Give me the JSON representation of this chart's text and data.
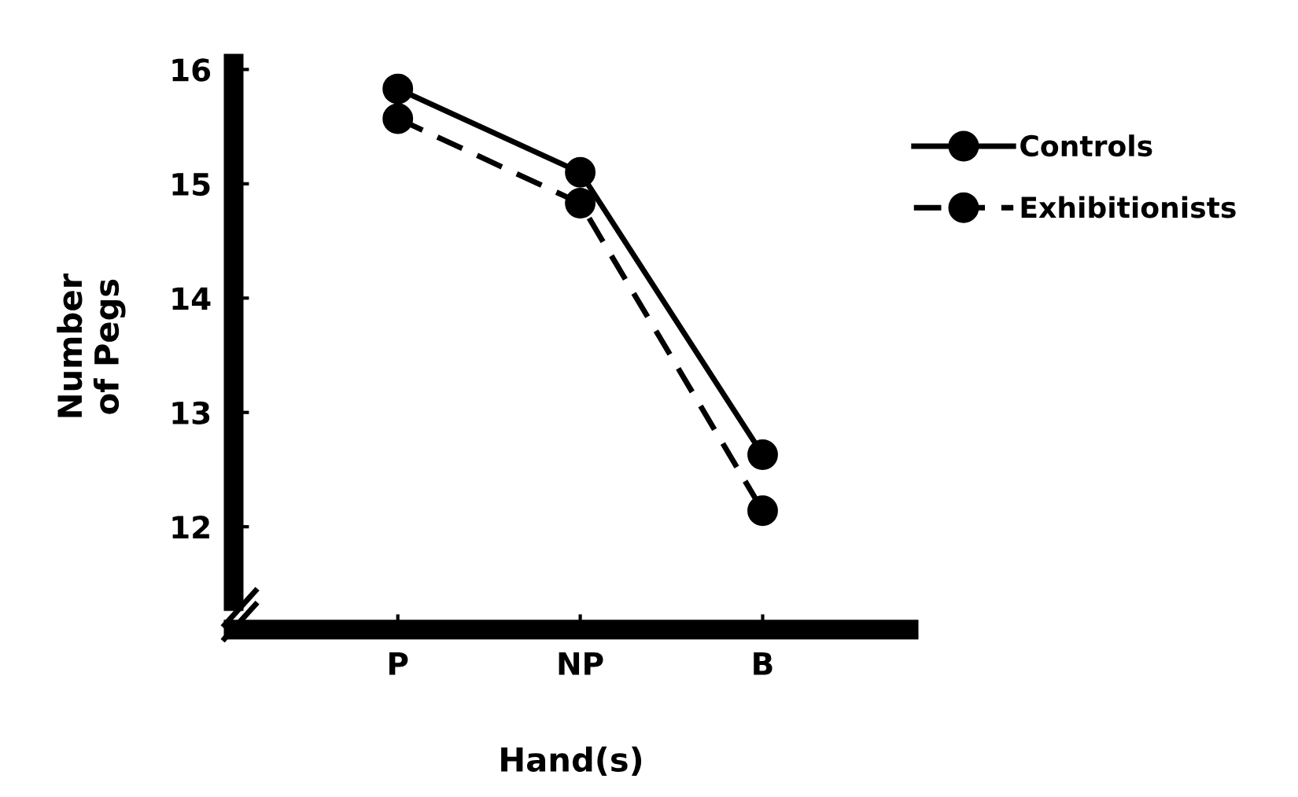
{
  "chart_data": {
    "type": "line",
    "xlabel": "Hand(s)",
    "ylabel": "Number\nof Pegs",
    "categories": [
      "P",
      "NP",
      "B"
    ],
    "series": [
      {
        "name": "Controls",
        "color": "#000000",
        "line_style": "solid",
        "values": [
          15.83,
          15.1,
          12.63
        ]
      },
      {
        "name": "Exhibitionists",
        "color": "#000000",
        "line_style": "dashed",
        "values": [
          15.57,
          14.83,
          12.14
        ]
      }
    ],
    "ylim": [
      11.1,
      16.05
    ],
    "yticks": [
      12,
      13,
      14,
      15,
      16
    ],
    "marker": "circle",
    "grid": false,
    "legend": "top right"
  }
}
